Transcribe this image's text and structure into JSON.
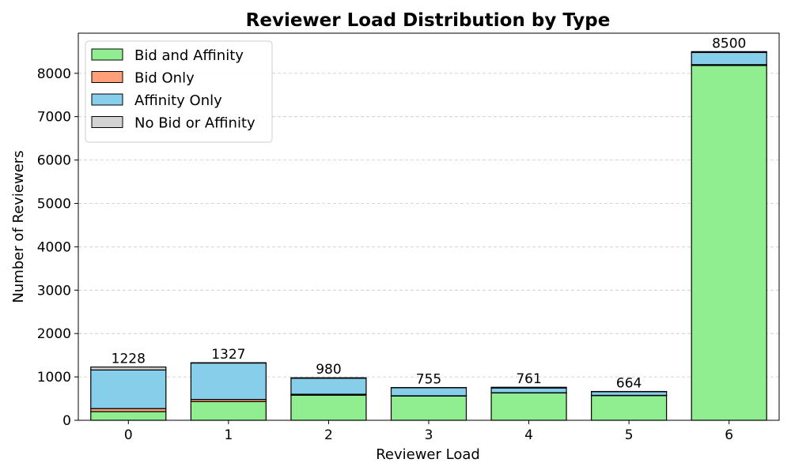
{
  "chart_data": {
    "type": "bar",
    "stacked": true,
    "title": "Reviewer Load Distribution by Type",
    "xlabel": "Reviewer Load",
    "ylabel": "Number of Reviewers",
    "categories": [
      "0",
      "1",
      "2",
      "3",
      "4",
      "5",
      "6"
    ],
    "ylim": [
      0,
      8925
    ],
    "yticks": [
      0,
      1000,
      2000,
      3000,
      4000,
      5000,
      6000,
      7000,
      8000
    ],
    "grid": "y-dashed",
    "legend_position": "top-left",
    "series": [
      {
        "name": "Bid and Affinity",
        "color": "#90ee90",
        "values": [
          200,
          430,
          580,
          560,
          630,
          570,
          8180
        ]
      },
      {
        "name": "Bid Only",
        "color": "#ffa07a",
        "values": [
          70,
          50,
          20,
          5,
          5,
          5,
          20
        ]
      },
      {
        "name": "Affinity Only",
        "color": "#87ceeb",
        "values": [
          890,
          840,
          370,
          185,
          110,
          84,
          280
        ]
      },
      {
        "name": "No Bid or Affinity",
        "color": "#d3d3d3",
        "values": [
          68,
          7,
          10,
          5,
          16,
          5,
          20
        ]
      }
    ],
    "totals": [
      1228,
      1327,
      980,
      755,
      761,
      664,
      8500
    ]
  }
}
